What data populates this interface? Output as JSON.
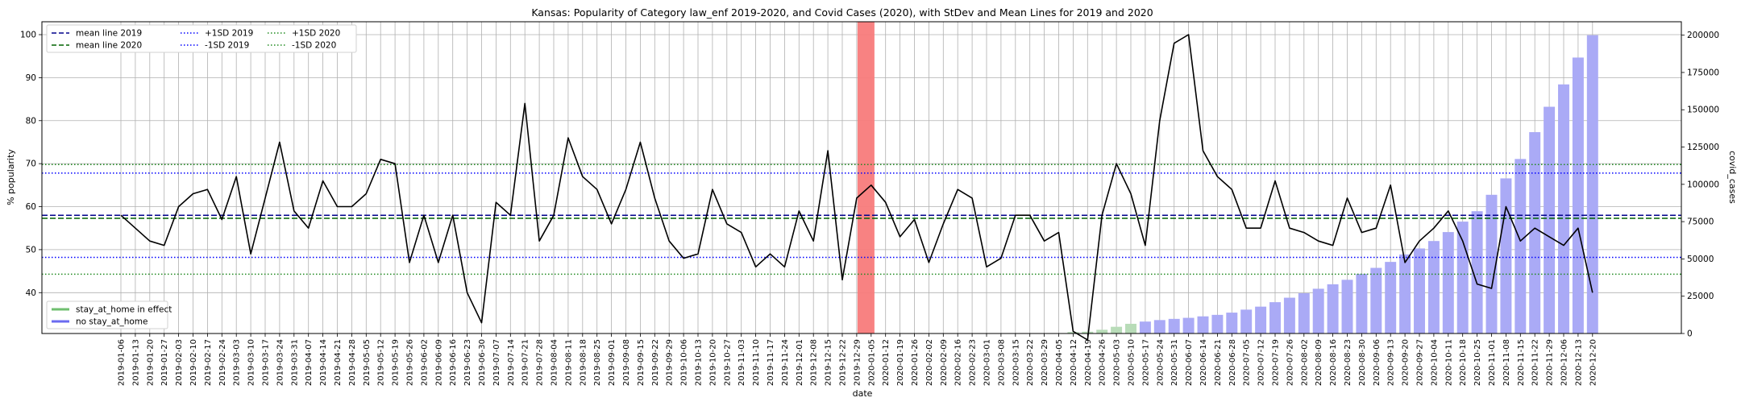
{
  "chart_data": {
    "type": "line",
    "title": "Kansas: Popularity of Category law_enf 2019-2020, and Covid Cases (2020), with StDev and Mean Lines for 2019 and 2020",
    "xlabel": "date",
    "ylabel": "% popularity",
    "y2label": "covid_cases",
    "ylim": [
      30.5,
      103
    ],
    "y2lim": [
      0,
      209000
    ],
    "yticks": [
      40,
      50,
      60,
      70,
      80,
      90,
      100
    ],
    "y2ticks": [
      0,
      25000,
      50000,
      75000,
      100000,
      125000,
      150000,
      175000,
      200000
    ],
    "grid": true,
    "x": [
      "2019-01-06",
      "2019-01-13",
      "2019-01-20",
      "2019-01-27",
      "2019-02-03",
      "2019-02-10",
      "2019-02-17",
      "2019-02-24",
      "2019-03-03",
      "2019-03-10",
      "2019-03-17",
      "2019-03-24",
      "2019-03-31",
      "2019-04-07",
      "2019-04-14",
      "2019-04-21",
      "2019-04-28",
      "2019-05-05",
      "2019-05-12",
      "2019-05-19",
      "2019-05-26",
      "2019-06-02",
      "2019-06-09",
      "2019-06-16",
      "2019-06-23",
      "2019-06-30",
      "2019-07-07",
      "2019-07-14",
      "2019-07-21",
      "2019-07-28",
      "2019-08-04",
      "2019-08-11",
      "2019-08-18",
      "2019-08-25",
      "2019-09-01",
      "2019-09-08",
      "2019-09-15",
      "2019-09-22",
      "2019-09-29",
      "2019-10-06",
      "2019-10-13",
      "2019-10-20",
      "2019-10-27",
      "2019-11-03",
      "2019-11-10",
      "2019-11-17",
      "2019-11-24",
      "2019-12-01",
      "2019-12-08",
      "2019-12-15",
      "2019-12-22",
      "2019-12-29",
      "2020-01-05",
      "2020-01-12",
      "2020-01-19",
      "2020-01-26",
      "2020-02-02",
      "2020-02-09",
      "2020-02-16",
      "2020-02-23",
      "2020-03-01",
      "2020-03-08",
      "2020-03-15",
      "2020-03-22",
      "2020-03-29",
      "2020-04-05",
      "2020-04-12",
      "2020-04-19",
      "2020-04-26",
      "2020-05-03",
      "2020-05-10",
      "2020-05-17",
      "2020-05-24",
      "2020-05-31",
      "2020-06-07",
      "2020-06-14",
      "2020-06-21",
      "2020-06-28",
      "2020-07-05",
      "2020-07-12",
      "2020-07-19",
      "2020-07-26",
      "2020-08-02",
      "2020-08-09",
      "2020-08-16",
      "2020-08-23",
      "2020-08-30",
      "2020-09-06",
      "2020-09-13",
      "2020-09-20",
      "2020-09-27",
      "2020-10-04",
      "2020-10-11",
      "2020-10-18",
      "2020-10-25",
      "2020-11-01",
      "2020-11-08",
      "2020-11-15",
      "2020-11-22",
      "2020-11-29",
      "2020-12-06",
      "2020-12-13",
      "2020-12-20"
    ],
    "series": [
      {
        "name": "popularity",
        "color": "#000000",
        "values": [
          58,
          55,
          52,
          51,
          60,
          63,
          64,
          57,
          67,
          49,
          62,
          75,
          59,
          55,
          66,
          60,
          60,
          63,
          71,
          70,
          47,
          58,
          47,
          58,
          40,
          33,
          61,
          58,
          84,
          52,
          58,
          76,
          67,
          64,
          56,
          64,
          75,
          62,
          52,
          48,
          49,
          64,
          56,
          54,
          46,
          49,
          46,
          59,
          52,
          73,
          43,
          62,
          65,
          61,
          53,
          57,
          47,
          56,
          64,
          62,
          46,
          48,
          58,
          58,
          52,
          54,
          31,
          29,
          58,
          70,
          63,
          51,
          80,
          98,
          100,
          73,
          67,
          64,
          55,
          55,
          66,
          55,
          54,
          52,
          51,
          62,
          54,
          55,
          65,
          47,
          52,
          55,
          59,
          52,
          42,
          41,
          60,
          52,
          55,
          53,
          51,
          55,
          40
        ]
      },
      {
        "name": "covid_cases",
        "type": "bar",
        "axis": "right",
        "color": "#aaaaf6",
        "values": [
          null,
          null,
          null,
          null,
          null,
          null,
          null,
          null,
          null,
          null,
          null,
          null,
          null,
          null,
          null,
          null,
          null,
          null,
          null,
          null,
          null,
          null,
          null,
          null,
          null,
          null,
          null,
          null,
          null,
          null,
          null,
          null,
          null,
          null,
          null,
          null,
          null,
          null,
          null,
          null,
          null,
          null,
          null,
          null,
          null,
          null,
          null,
          null,
          null,
          null,
          null,
          null,
          null,
          null,
          null,
          null,
          null,
          null,
          null,
          null,
          null,
          null,
          null,
          null,
          null,
          null,
          1000,
          1200,
          2500,
          4500,
          6500,
          8000,
          9000,
          9800,
          10500,
          11500,
          12500,
          14000,
          16000,
          18000,
          21000,
          24000,
          27000,
          30000,
          33000,
          36000,
          40000,
          44000,
          48000,
          53000,
          57000,
          62000,
          68000,
          75000,
          82000,
          93000,
          104000,
          117000,
          135000,
          152000,
          167000,
          185000,
          200000
        ],
        "stay_at_home": [
          false,
          false,
          false,
          false,
          false,
          false,
          false,
          false,
          false,
          false,
          false,
          false,
          false,
          false,
          false,
          false,
          false,
          false,
          false,
          false,
          false,
          false,
          false,
          false,
          false,
          false,
          false,
          false,
          false,
          false,
          false,
          false,
          false,
          false,
          false,
          false,
          false,
          false,
          false,
          false,
          false,
          false,
          false,
          false,
          false,
          false,
          false,
          false,
          false,
          false,
          false,
          false,
          false,
          false,
          false,
          false,
          false,
          false,
          false,
          false,
          false,
          false,
          false,
          false,
          false,
          false,
          true,
          true,
          true,
          true,
          true,
          false,
          false,
          false,
          false,
          false,
          false,
          false,
          false,
          false,
          false,
          false,
          false,
          false,
          false,
          false,
          false,
          false,
          false,
          false,
          false,
          false,
          false,
          false,
          false,
          false,
          false,
          false,
          false,
          false,
          false,
          false,
          false
        ]
      }
    ],
    "hlines": [
      {
        "name": "mean line 2019",
        "value": 58.0,
        "color": "#00008b",
        "style": "dashed"
      },
      {
        "name": "mean line 2020",
        "value": 57.3,
        "color": "#006400",
        "style": "dashed"
      },
      {
        "name": "+1SD 2019",
        "value": 67.8,
        "color": "#0000ff",
        "style": "dotted"
      },
      {
        "name": "-1SD 2019",
        "value": 48.2,
        "color": "#0000ff",
        "style": "dotted"
      },
      {
        "name": "+1SD 2020",
        "value": 69.8,
        "color": "#228b22",
        "style": "dotted"
      },
      {
        "name": "-1SD 2020",
        "value": 44.3,
        "color": "#228b22",
        "style": "dotted"
      }
    ],
    "highlight_span": {
      "start": "2019-12-29",
      "end": "2020-01-05",
      "color": "#f87b7b"
    },
    "legend_top": {
      "placement": "upper-left",
      "columns": [
        [
          "mean line 2019",
          "mean line 2020"
        ],
        [
          "+1SD 2019",
          "-1SD 2019"
        ],
        [
          "+1SD 2020",
          "-1SD 2020"
        ]
      ]
    },
    "legend_bottom": {
      "placement": "lower-left",
      "items": [
        {
          "label": "stay_at_home in effect",
          "color": "#6fbf6f"
        },
        {
          "label": "no stay_at_home",
          "color": "#6a6af0"
        }
      ]
    }
  }
}
